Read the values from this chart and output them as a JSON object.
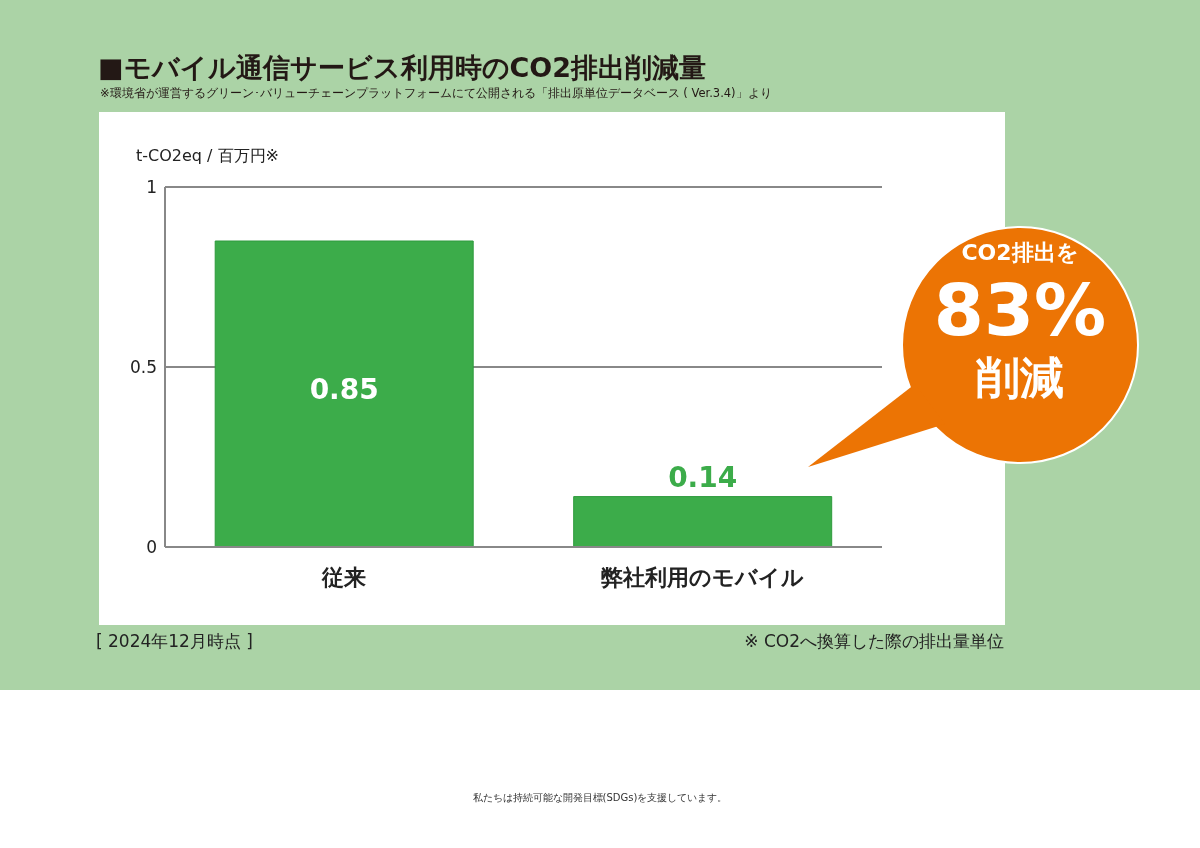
{
  "chart_data": {
    "type": "bar",
    "title": "■モバイル通信サービス利用時のCO2排出削減量",
    "subtitle": "※環境省が運営するグリーン･バリューチェーンプラットフォームにて公開される「排出原単位データベース ( Ver.3.4)」より",
    "ylabel": "t-CO2eq / 百万円※",
    "categories": [
      "従来",
      "弊社利用のモバイル"
    ],
    "values": [
      0.85,
      0.14
    ],
    "color": "#3cac4a",
    "ylim": [
      0,
      1
    ],
    "yticks": [
      0,
      {
        "value": 0.5,
        "label": "0.5"
      },
      1
    ],
    "grid": "y",
    "data_labels": true,
    "annotations": [
      "[ 2024年12月時点 ]",
      "※ CO2へ換算した際の排出量単位",
      "CO2排出を",
      "83%",
      "削減",
      "私たちは持続可能な開発目標(SDGs)を支援しています。"
    ]
  }
}
